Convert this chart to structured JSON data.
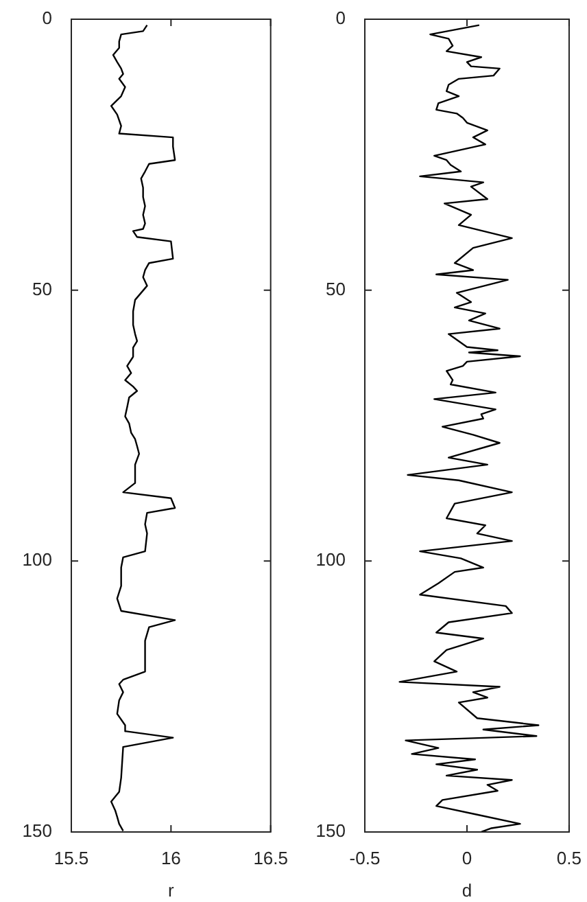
{
  "chart_data": [
    {
      "type": "line",
      "xlabel": "r",
      "xlim": [
        15.5,
        16.5
      ],
      "xticks": [
        15.5,
        16,
        16.5
      ],
      "ylim": [
        150,
        0
      ],
      "yticks": [
        0,
        50,
        100,
        150
      ],
      "marker": "none",
      "series": [
        {
          "color": "#000000",
          "x": [
            15.88,
            15.86,
            15.75,
            15.74,
            15.74,
            15.71,
            15.73,
            15.75,
            15.76,
            15.74,
            15.77,
            15.75,
            15.7,
            15.73,
            15.75,
            15.74,
            16.01,
            16.01,
            16.02,
            15.89,
            15.87,
            15.85,
            15.86,
            15.86,
            15.87,
            15.86,
            15.87,
            15.86,
            15.81,
            15.83,
            16.0,
            16.01,
            15.89,
            15.87,
            15.86,
            15.88,
            15.85,
            15.82,
            15.81,
            15.81,
            15.82,
            15.83,
            15.81,
            15.81,
            15.78,
            15.8,
            15.77,
            15.81,
            15.83,
            15.79,
            15.78,
            15.77,
            15.79,
            15.8,
            15.82,
            15.83,
            15.84,
            15.82,
            15.82,
            15.76,
            16.0,
            16.02,
            15.88,
            15.87,
            15.88,
            15.87,
            15.76,
            15.75,
            15.75,
            15.73,
            15.75,
            16.02,
            15.89,
            15.87,
            15.87,
            15.76,
            15.74,
            15.76,
            15.74,
            15.73,
            15.77,
            15.77,
            16.01,
            15.76,
            15.75,
            15.74,
            15.7,
            15.72,
            15.73,
            15.74,
            15.76
          ],
          "values": [
            1.1,
            2.2,
            2.8,
            4.1,
            5.3,
            6.6,
            7.9,
            9.1,
            10.1,
            11,
            12.5,
            14.2,
            16,
            17.6,
            19.7,
            21.1,
            21.8,
            23.5,
            26,
            26.7,
            28.1,
            29.4,
            31.1,
            32.8,
            34.5,
            36.1,
            37.7,
            38.7,
            39.1,
            40.2,
            41,
            44.2,
            45,
            46.3,
            47.6,
            49.2,
            50.5,
            51.8,
            53.9,
            56.4,
            58.1,
            59.4,
            60.6,
            62.3,
            64,
            65.3,
            66.6,
            67.8,
            68.6,
            69.8,
            71.6,
            73.3,
            74.6,
            76.3,
            77.5,
            78.8,
            80.2,
            82.2,
            85.6,
            87.3,
            88.4,
            90.2,
            91.1,
            93.2,
            94.9,
            98.2,
            99.3,
            101.2,
            104.6,
            106.9,
            109.2,
            110.9,
            112.2,
            114.7,
            120.4,
            121.9,
            122.7,
            124.2,
            125.7,
            128.2,
            130.3,
            131.4,
            132.6,
            134.3,
            140,
            142.6,
            144.4,
            146,
            147.2,
            148.5,
            149.8
          ]
        }
      ]
    },
    {
      "type": "line",
      "xlabel": "d",
      "xlim": [
        -0.5,
        0.5
      ],
      "xticks": [
        -0.5,
        0,
        0.5
      ],
      "ylim": [
        150,
        0
      ],
      "yticks": [
        0,
        50,
        100,
        150
      ],
      "marker": "none",
      "series": [
        {
          "color": "#000000",
          "x": [
            0.06,
            -0.18,
            -0.09,
            -0.07,
            -0.1,
            0.07,
            0.0,
            0.02,
            0.16,
            0.13,
            -0.04,
            -0.09,
            -0.1,
            -0.04,
            -0.14,
            -0.15,
            -0.05,
            -0.02,
            0.0,
            0.1,
            0.03,
            0.09,
            -0.16,
            -0.1,
            -0.08,
            -0.03,
            -0.23,
            0.08,
            0.02,
            0.1,
            -0.11,
            0.02,
            -0.04,
            0.22,
            0.03,
            -0.06,
            0.03,
            -0.15,
            0.2,
            -0.05,
            0.02,
            -0.06,
            0.09,
            0.01,
            0.16,
            -0.09,
            0.0,
            0.15,
            0.01,
            0.26,
            0.0,
            -0.02,
            -0.1,
            -0.07,
            -0.08,
            0.14,
            -0.16,
            0.14,
            0.07,
            0.08,
            -0.12,
            0.03,
            0.16,
            -0.09,
            0.1,
            -0.29,
            -0.04,
            0.22,
            -0.06,
            -0.1,
            0.09,
            0.05,
            0.22,
            -0.23,
            -0.03,
            0.08,
            -0.06,
            -0.14,
            -0.23,
            0.19,
            0.22,
            -0.09,
            -0.15,
            0.08,
            -0.1,
            -0.16,
            -0.05,
            -0.33,
            0.16,
            0.03,
            0.1,
            -0.04,
            0.05,
            0.35,
            0.08,
            0.34,
            -0.3,
            -0.14,
            -0.27,
            0.04,
            -0.15,
            0.05,
            -0.1,
            0.22,
            0.1,
            0.15,
            -0.12,
            -0.15,
            0.05,
            0.26,
            0.12,
            0.07
          ],
          "values": [
            1.1,
            2.8,
            3.6,
            4.9,
            5.9,
            7,
            7.9,
            8.7,
            9.1,
            10.4,
            11,
            12.1,
            13.3,
            14.2,
            15.5,
            16.7,
            17.4,
            18.2,
            19.1,
            20.5,
            21.8,
            23.1,
            25.2,
            26,
            26.9,
            28.1,
            29,
            30.1,
            30.9,
            33.2,
            34,
            36.1,
            38,
            40.4,
            42.2,
            45,
            46.3,
            47.1,
            48.1,
            50.5,
            52.2,
            53.2,
            54.3,
            55.6,
            57.1,
            58.1,
            60.5,
            61.1,
            61.5,
            62.2,
            63.2,
            64,
            64.9,
            66.6,
            67.4,
            68.9,
            70.1,
            72,
            72.9,
            73.7,
            75.2,
            76.7,
            78.2,
            80.9,
            82.2,
            84.1,
            85.1,
            87.3,
            89.4,
            92.1,
            93.4,
            94.9,
            96.3,
            98.2,
            99.5,
            101.2,
            102,
            104.1,
            106.2,
            108.3,
            109.6,
            111.3,
            113.2,
            114.3,
            116.4,
            118.5,
            120.4,
            122.3,
            123.2,
            124.2,
            125.2,
            126.1,
            129,
            130.3,
            131.1,
            132.3,
            133.1,
            134.5,
            135.6,
            136.6,
            137.5,
            138.5,
            139.6,
            140.4,
            141.3,
            142.4,
            144.1,
            145.2,
            146.8,
            148.5,
            149.3,
            150
          ]
        }
      ]
    }
  ]
}
